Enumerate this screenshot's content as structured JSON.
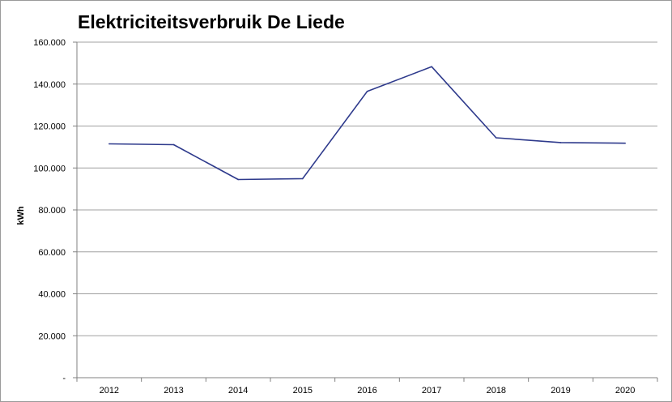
{
  "chart_data": {
    "type": "line",
    "title": "Elektriciteitsverbruik De Liede",
    "xlabel": "",
    "ylabel": "kWh",
    "categories": [
      "2012",
      "2013",
      "2014",
      "2015",
      "2016",
      "2017",
      "2018",
      "2019",
      "2020"
    ],
    "series": [
      {
        "values": [
          111500,
          111100,
          94500,
          94900,
          136500,
          148300,
          114400,
          112100,
          111800
        ],
        "color": "#2e3a8c"
      }
    ],
    "ylim": [
      0,
      160000
    ],
    "yticks": [
      {
        "value": 0,
        "label": "-"
      },
      {
        "value": 20000,
        "label": "20.000"
      },
      {
        "value": 40000,
        "label": "40.000"
      },
      {
        "value": 60000,
        "label": "60.000"
      },
      {
        "value": 80000,
        "label": "80.000"
      },
      {
        "value": 100000,
        "label": "100.000"
      },
      {
        "value": 120000,
        "label": "120.000"
      },
      {
        "value": 140000,
        "label": "140.000"
      },
      {
        "value": 160000,
        "label": "160.000"
      }
    ],
    "grid": true,
    "legend": "none"
  }
}
